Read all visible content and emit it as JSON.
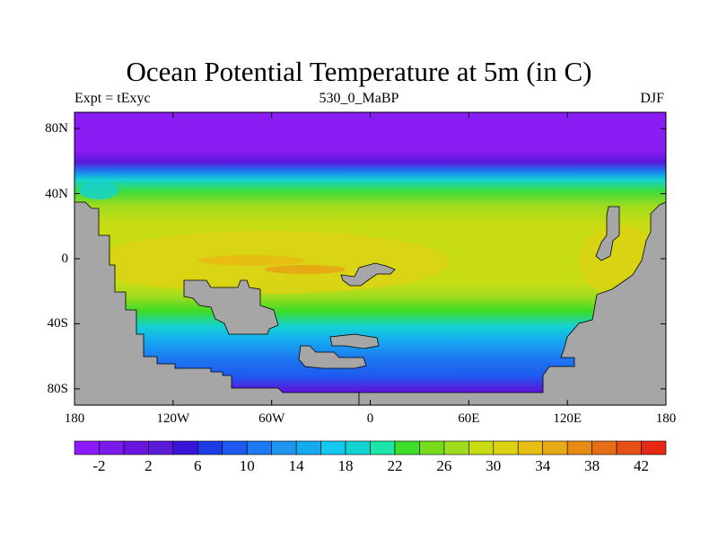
{
  "map": {
    "title": "Ocean Potential Temperature at 5m (in C)",
    "left_string": "Expt = tExyc",
    "center_string": "530_0_MaBP",
    "right_string": "DJF",
    "projection": "cylindrical-equidistant",
    "lat_range": [
      -90,
      90
    ],
    "lon_range": [
      -180,
      180
    ],
    "land_color": "#a6a6a6",
    "lat_ticks": [
      {
        "value": 80,
        "label": "80N"
      },
      {
        "value": 40,
        "label": "40N"
      },
      {
        "value": 0,
        "label": "0"
      },
      {
        "value": -40,
        "label": "40S"
      },
      {
        "value": -80,
        "label": "80S"
      }
    ],
    "lon_ticks": [
      {
        "value": -180,
        "label": "180"
      },
      {
        "value": -120,
        "label": "120W"
      },
      {
        "value": -60,
        "label": "60W"
      },
      {
        "value": 0,
        "label": "0"
      },
      {
        "value": 60,
        "label": "60E"
      },
      {
        "value": 120,
        "label": "120E"
      },
      {
        "value": 180,
        "label": "180"
      }
    ]
  },
  "colorbar": {
    "colors": [
      "#8c1aff",
      "#7a1aeb",
      "#6a14e0",
      "#5a1ad6",
      "#3a14d8",
      "#1e3ce6",
      "#1e5af0",
      "#1e78f0",
      "#1e96f0",
      "#14aaf0",
      "#14c8f0",
      "#14d2d2",
      "#1ee6aa",
      "#3cdc28",
      "#78dc1e",
      "#a0dc1e",
      "#c8dc14",
      "#dcd214",
      "#e6be14",
      "#e6aa14",
      "#e68c14",
      "#e66e14",
      "#e65014",
      "#e62814"
    ],
    "labels": [
      {
        "label": "-2",
        "index": 1
      },
      {
        "label": "2",
        "index": 3
      },
      {
        "label": "6",
        "index": 5
      },
      {
        "label": "10",
        "index": 7
      },
      {
        "label": "14",
        "index": 9
      },
      {
        "label": "18",
        "index": 11
      },
      {
        "label": "22",
        "index": 13
      },
      {
        "label": "26",
        "index": 15
      },
      {
        "label": "30",
        "index": 17
      },
      {
        "label": "34",
        "index": 19
      },
      {
        "label": "38",
        "index": 21
      },
      {
        "label": "42",
        "index": 23
      }
    ]
  }
}
